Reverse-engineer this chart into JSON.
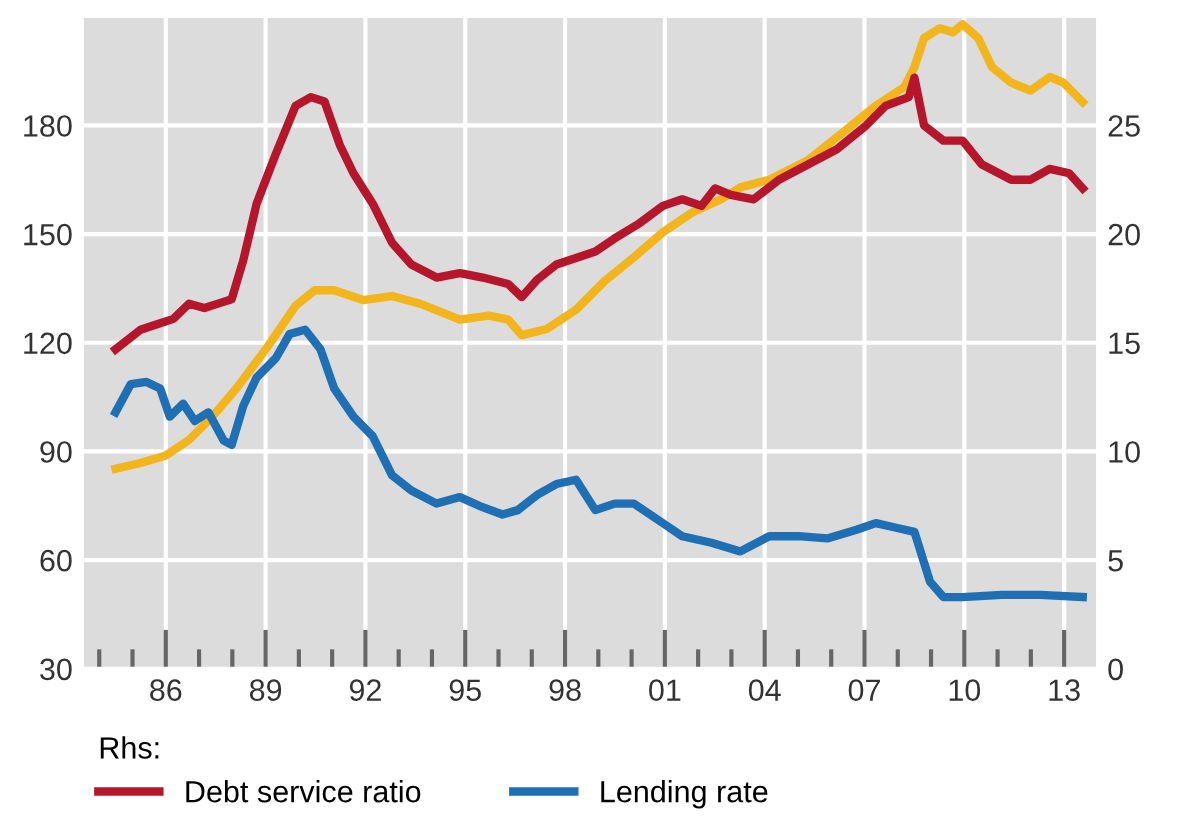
{
  "chart_data": {
    "type": "line",
    "legend_title": "Rhs:",
    "legend": "bottom",
    "grid": true,
    "xlim": [
      1983.5,
      2014
    ],
    "ylim": [
      30,
      210
    ],
    "yticks": [
      30,
      60,
      90,
      120,
      150,
      180
    ],
    "y2lim": [
      0,
      30
    ],
    "y2ticks": [
      0,
      5,
      10,
      15,
      20,
      25
    ],
    "xticks": [
      {
        "value": 1984,
        "label": null
      },
      {
        "value": 1985,
        "label": null
      },
      {
        "value": 1986,
        "label": "86"
      },
      {
        "value": 1987,
        "label": null
      },
      {
        "value": 1988,
        "label": null
      },
      {
        "value": 1989,
        "label": "89"
      },
      {
        "value": 1990,
        "label": null
      },
      {
        "value": 1991,
        "label": null
      },
      {
        "value": 1992,
        "label": "92"
      },
      {
        "value": 1993,
        "label": null
      },
      {
        "value": 1994,
        "label": null
      },
      {
        "value": 1995,
        "label": "95"
      },
      {
        "value": 1996,
        "label": null
      },
      {
        "value": 1997,
        "label": null
      },
      {
        "value": 1998,
        "label": "98"
      },
      {
        "value": 1999,
        "label": null
      },
      {
        "value": 2000,
        "label": null
      },
      {
        "value": 2001,
        "label": "01"
      },
      {
        "value": 2002,
        "label": null
      },
      {
        "value": 2003,
        "label": null
      },
      {
        "value": 2004,
        "label": "04"
      },
      {
        "value": 2005,
        "label": null
      },
      {
        "value": 2006,
        "label": null
      },
      {
        "value": 2007,
        "label": "07"
      },
      {
        "value": 2008,
        "label": null
      },
      {
        "value": 2009,
        "label": null
      },
      {
        "value": 2010,
        "label": "10"
      },
      {
        "value": 2011,
        "label": null
      },
      {
        "value": 2012,
        "label": null
      },
      {
        "value": 2013,
        "label": "13"
      }
    ],
    "series": [
      {
        "color": "#f2b51c",
        "x": [
          1984.49,
          1985.24,
          1986.0,
          1986.7,
          1987.4,
          1988.15,
          1989.02,
          1989.9,
          1990.48,
          1991.06,
          1991.93,
          1992.8,
          1993.67,
          1994.84,
          1995.71,
          1996.29,
          1996.7,
          1997.45,
          1998.33,
          1999.2,
          2000.07,
          2000.94,
          2001.81,
          2002.69,
          2003.27,
          2004.14,
          2005.3,
          2006.47,
          2007.34,
          2008.21,
          2008.5,
          2008.79,
          2009.26,
          2009.66,
          2009.95,
          2010.42,
          2010.83,
          2011.41,
          2011.99,
          2012.57,
          2012.98,
          2013.56
        ],
        "values": [
          85.2,
          86.8,
          88.9,
          93.2,
          99.6,
          107.7,
          118.4,
          130.2,
          134.5,
          134.5,
          131.8,
          132.9,
          130.7,
          126.4,
          127.5,
          126.4,
          122.1,
          123.8,
          129.1,
          137.1,
          143.6,
          150.5,
          155.9,
          159.6,
          162.9,
          165.0,
          170.4,
          178.9,
          185.4,
          190.7,
          196.1,
          204.1,
          206.8,
          205.7,
          207.9,
          204.1,
          196.1,
          191.8,
          189.6,
          193.4,
          191.8,
          186.4
        ]
      },
      {
        "name": "Debt service ratio",
        "color": "#b5162b",
        "axis": "y2",
        "x": [
          1984.49,
          1985.24,
          1985.83,
          1986.23,
          1986.7,
          1987.16,
          1987.57,
          1987.98,
          1988.33,
          1988.73,
          1989.31,
          1989.9,
          1990.36,
          1990.77,
          1991.23,
          1991.64,
          1992.22,
          1992.8,
          1993.38,
          1994.14,
          1994.84,
          1995.53,
          1996.29,
          1996.7,
          1997.16,
          1997.74,
          1998.33,
          1998.91,
          1999.49,
          2000.24,
          2000.94,
          2001.52,
          2002.1,
          2002.51,
          2002.98,
          2003.67,
          2004.43,
          2005.3,
          2006.17,
          2007.05,
          2007.63,
          2008.33,
          2008.5,
          2008.79,
          2009.37,
          2009.95,
          2010.53,
          2011.41,
          2011.99,
          2012.57,
          2013.15,
          2013.56
        ],
        "values": [
          14.7,
          15.6,
          15.9,
          16.1,
          16.8,
          16.6,
          16.8,
          17.0,
          18.8,
          21.4,
          23.7,
          25.9,
          26.3,
          26.1,
          24.1,
          22.8,
          21.4,
          19.6,
          18.6,
          18.0,
          18.2,
          18.0,
          17.7,
          17.1,
          17.9,
          18.6,
          18.9,
          19.2,
          19.8,
          20.5,
          21.3,
          21.6,
          21.3,
          22.1,
          21.8,
          21.6,
          22.5,
          23.2,
          23.9,
          25.0,
          25.9,
          26.3,
          27.2,
          25.0,
          24.3,
          24.3,
          23.2,
          22.5,
          22.5,
          23.0,
          22.8,
          22.1
        ]
      },
      {
        "name": "Lending rate",
        "color": "#1f6fb5",
        "axis": "y2",
        "x": [
          1984.49,
          1984.95,
          1985.42,
          1985.83,
          1986.12,
          1986.52,
          1986.87,
          1987.28,
          1987.74,
          1987.98,
          1988.33,
          1988.73,
          1989.31,
          1989.72,
          1990.19,
          1990.65,
          1991.06,
          1991.64,
          1992.22,
          1992.8,
          1993.38,
          1994.14,
          1994.84,
          1995.42,
          1996.12,
          1996.58,
          1997.16,
          1997.74,
          1998.33,
          1998.91,
          1999.49,
          2000.07,
          2000.94,
          2001.52,
          2002.4,
          2003.27,
          2004.14,
          2005.01,
          2005.88,
          2006.76,
          2007.34,
          2007.92,
          2008.5,
          2008.97,
          2009.37,
          2009.95,
          2011.12,
          2012.28,
          2013.56
        ],
        "values": [
          11.8,
          13.1,
          13.2,
          12.9,
          11.6,
          12.2,
          11.4,
          11.8,
          10.5,
          10.3,
          12.1,
          13.4,
          14.3,
          15.4,
          15.6,
          14.7,
          12.9,
          11.6,
          10.7,
          8.9,
          8.2,
          7.6,
          7.9,
          7.5,
          7.1,
          7.3,
          8.0,
          8.5,
          8.7,
          7.3,
          7.6,
          7.6,
          6.7,
          6.1,
          5.8,
          5.4,
          6.1,
          6.1,
          6.0,
          6.4,
          6.7,
          6.5,
          6.3,
          4.0,
          3.3,
          3.3,
          3.4,
          3.4,
          3.3
        ]
      }
    ]
  }
}
